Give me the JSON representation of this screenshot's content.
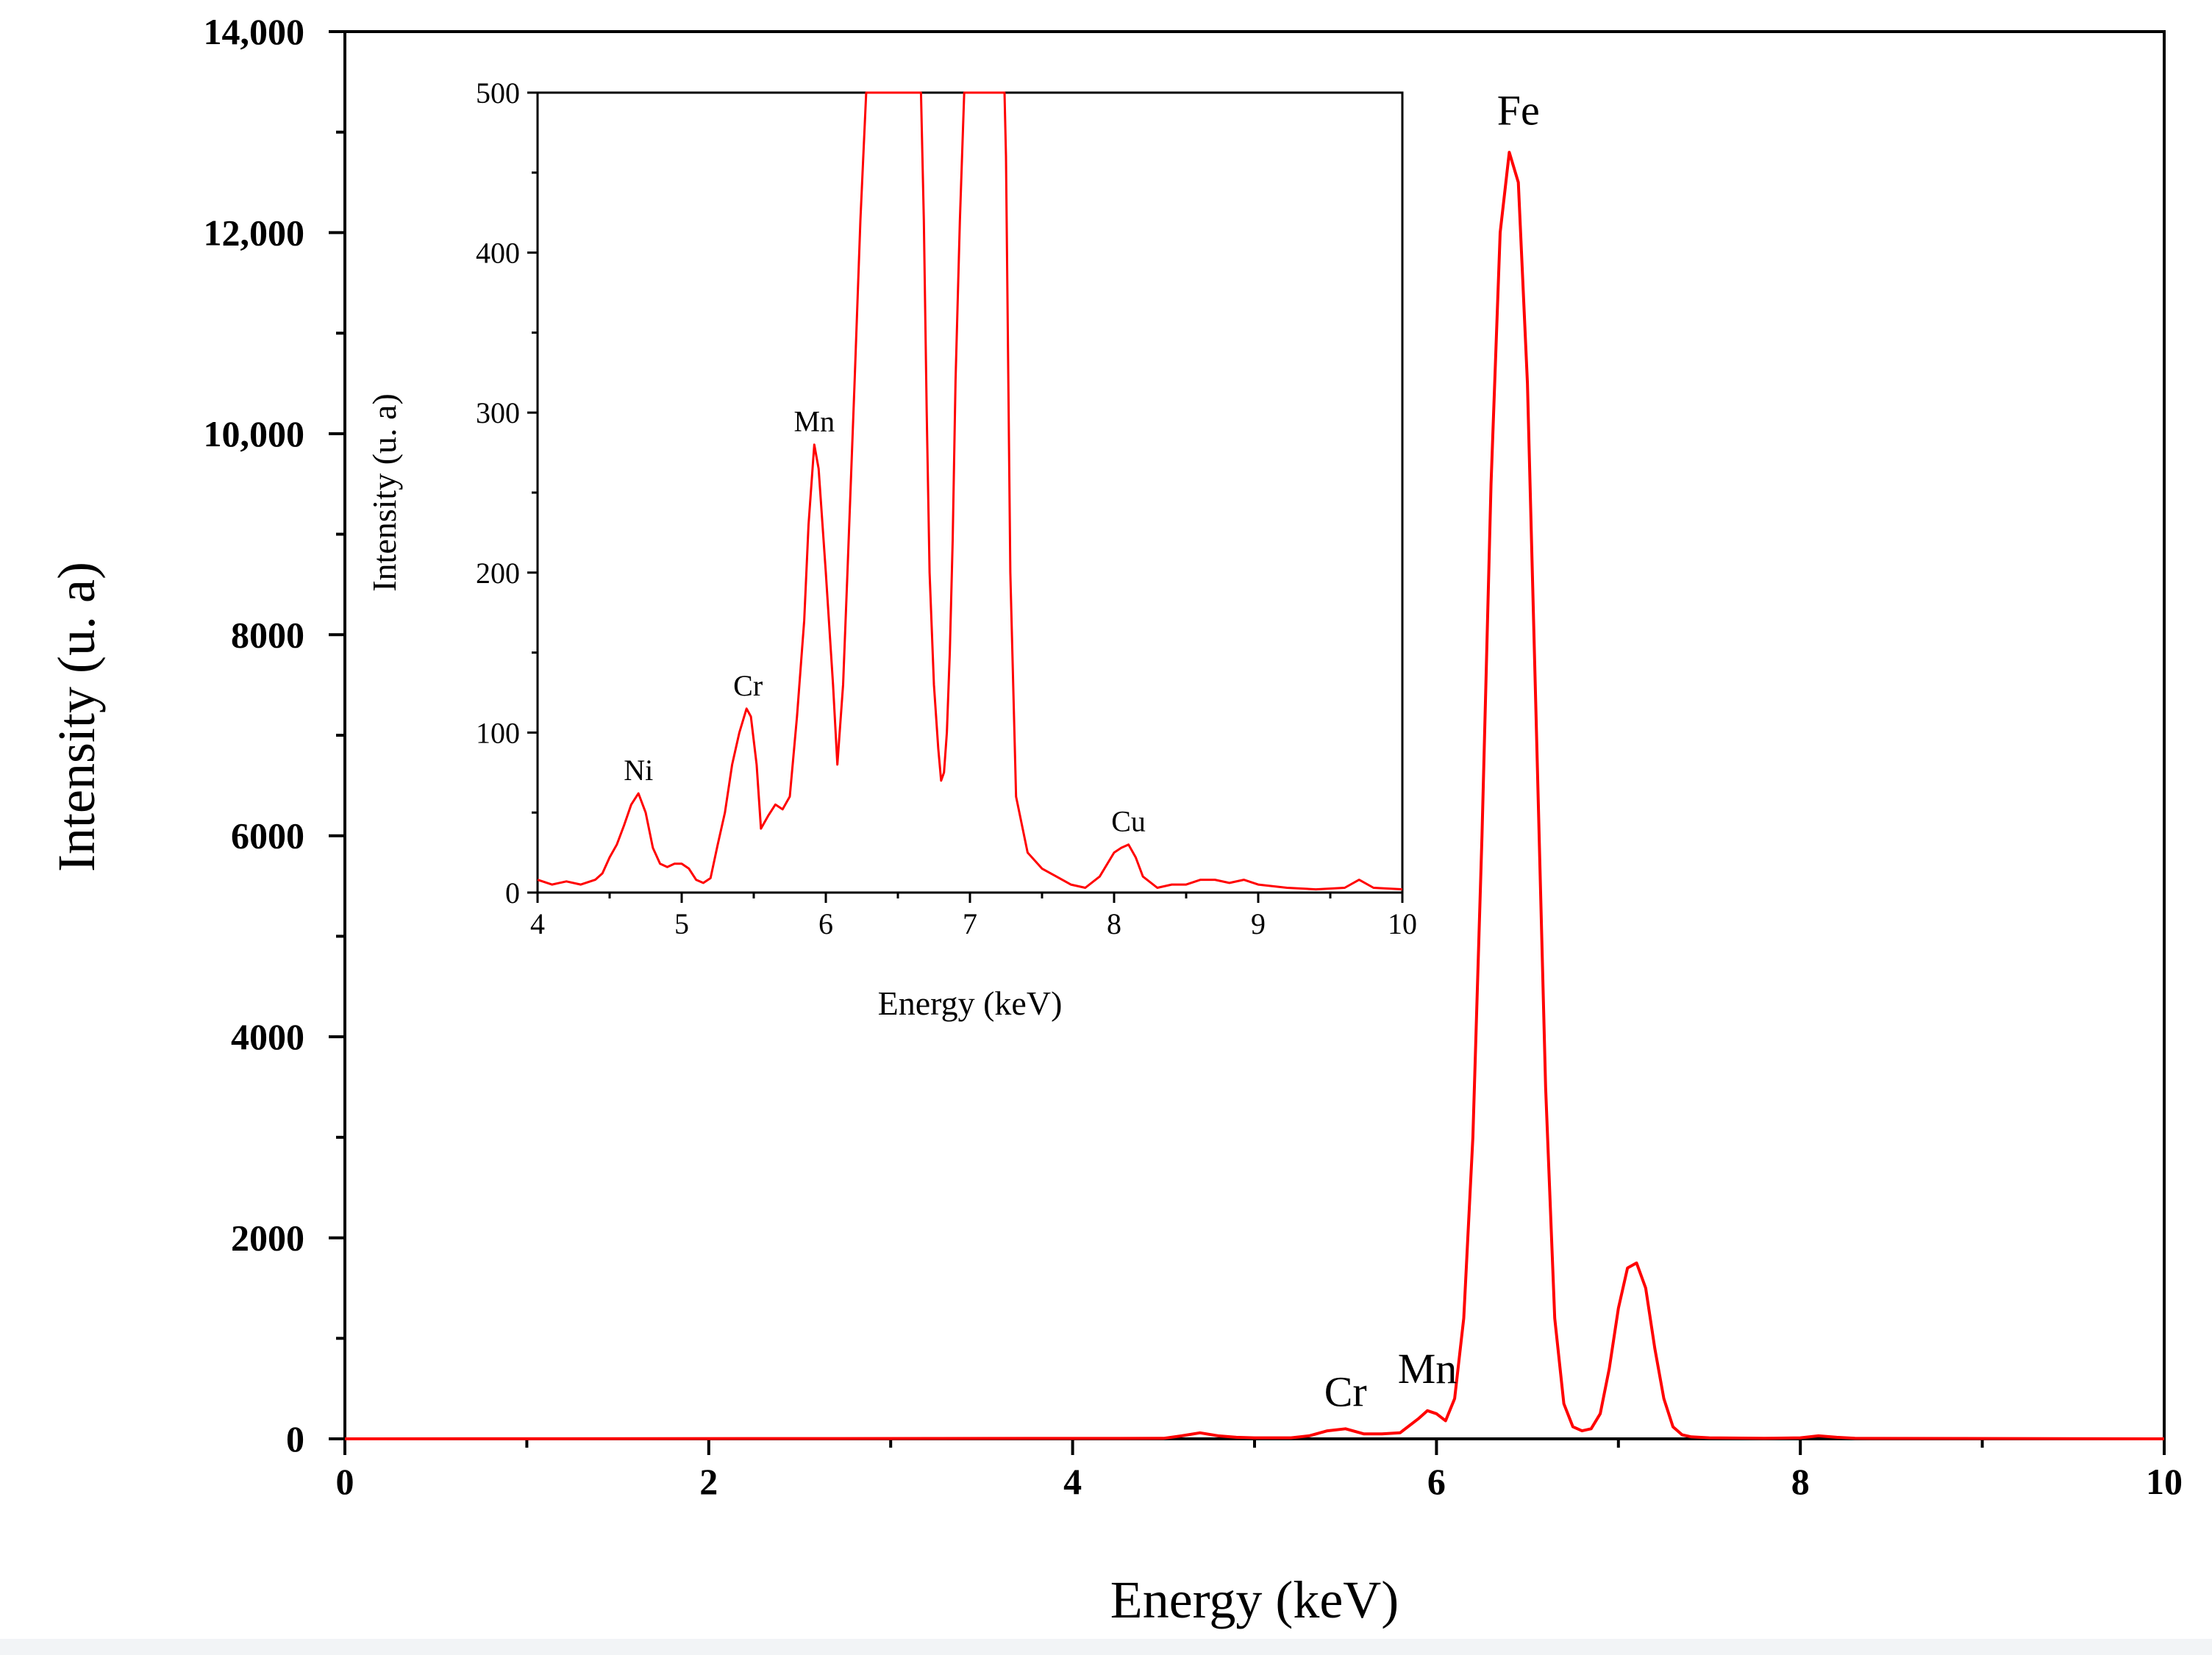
{
  "chart_data": [
    {
      "type": "line",
      "xlabel": "Energy (keV)",
      "ylabel": "Intensity (u. a)",
      "xlim": [
        0,
        10
      ],
      "ylim": [
        0,
        14000
      ],
      "x_ticks": [
        "0",
        "2",
        "4",
        "6",
        "8",
        "10"
      ],
      "y_ticks": [
        "0",
        "2000",
        "4000",
        "6000",
        "8000",
        "10,000",
        "12,000",
        "14,000"
      ],
      "grid": false,
      "line_color": "#ff0000",
      "series": [
        {
          "x": [
            0,
            4.5,
            4.6,
            4.7,
            4.8,
            4.9,
            5.0,
            5.2,
            5.3,
            5.4,
            5.5,
            5.6,
            5.7,
            5.8,
            5.9,
            5.95,
            6.0,
            6.05,
            6.1,
            6.15,
            6.2,
            6.25,
            6.3,
            6.35,
            6.4,
            6.45,
            6.5,
            6.55,
            6.6,
            6.65,
            6.7,
            6.75,
            6.8,
            6.85,
            6.9,
            6.95,
            7.0,
            7.05,
            7.1,
            7.15,
            7.2,
            7.25,
            7.3,
            7.35,
            7.4,
            7.5,
            7.8,
            8.0,
            8.1,
            8.2,
            8.3,
            10
          ],
          "y": [
            0,
            5,
            30,
            60,
            30,
            15,
            10,
            10,
            30,
            80,
            100,
            50,
            50,
            60,
            200,
            280,
            250,
            180,
            400,
            1200,
            3000,
            6000,
            9500,
            12000,
            12800,
            12500,
            10500,
            7000,
            3500,
            1200,
            350,
            120,
            80,
            100,
            250,
            700,
            1300,
            1700,
            1750,
            1500,
            900,
            400,
            120,
            40,
            20,
            10,
            5,
            10,
            30,
            15,
            5,
            0
          ]
        }
      ],
      "annotations": [
        {
          "text": "Fe",
          "x": 6.45,
          "y": 12900
        },
        {
          "text": "Mn",
          "x": 5.95,
          "y": 380
        },
        {
          "text": "Cr",
          "x": 5.5,
          "y": 150
        }
      ]
    },
    {
      "type": "line",
      "xlabel": "Energy (keV)",
      "ylabel": "Intensity (u. a)",
      "xlim": [
        4,
        10
      ],
      "ylim": [
        0,
        500
      ],
      "x_ticks": [
        "4",
        "5",
        "6",
        "7",
        "8",
        "9",
        "10"
      ],
      "y_ticks": [
        "0",
        "100",
        "200",
        "300",
        "400",
        "500"
      ],
      "grid": false,
      "line_color": "#ff0000",
      "series": [
        {
          "x": [
            4.0,
            4.1,
            4.2,
            4.3,
            4.4,
            4.45,
            4.5,
            4.55,
            4.6,
            4.65,
            4.7,
            4.75,
            4.8,
            4.85,
            4.9,
            4.95,
            5.0,
            5.05,
            5.1,
            5.15,
            5.2,
            5.25,
            5.3,
            5.35,
            5.4,
            5.45,
            5.48,
            5.52,
            5.55,
            5.6,
            5.65,
            5.7,
            5.75,
            5.8,
            5.85,
            5.88,
            5.92,
            5.95,
            6.0,
            6.05,
            6.08,
            6.12,
            6.15,
            6.2,
            6.24,
            6.28,
            6.3,
            6.66,
            6.68,
            6.7,
            6.72,
            6.75,
            6.78,
            6.8,
            6.82,
            6.84,
            6.86,
            6.88,
            6.9,
            6.93,
            6.96,
            6.98,
            7.24,
            7.25,
            7.28,
            7.32,
            7.4,
            7.5,
            7.6,
            7.7,
            7.8,
            7.9,
            8.0,
            8.05,
            8.1,
            8.15,
            8.2,
            8.3,
            8.4,
            8.5,
            8.6,
            8.7,
            8.8,
            8.9,
            9.0,
            9.2,
            9.4,
            9.6,
            9.7,
            9.8,
            10.0
          ],
          "y": [
            8,
            5,
            7,
            5,
            8,
            12,
            22,
            30,
            42,
            55,
            62,
            50,
            28,
            18,
            16,
            18,
            18,
            15,
            8,
            6,
            9,
            30,
            50,
            80,
            100,
            115,
            110,
            80,
            40,
            48,
            55,
            52,
            60,
            110,
            170,
            230,
            280,
            265,
            200,
            130,
            80,
            130,
            200,
            320,
            420,
            500,
            500,
            500,
            420,
            300,
            200,
            130,
            90,
            70,
            75,
            100,
            150,
            220,
            320,
            420,
            500,
            500,
            500,
            460,
            200,
            60,
            25,
            15,
            10,
            5,
            3,
            10,
            25,
            28,
            30,
            22,
            10,
            3,
            5,
            5,
            8,
            8,
            6,
            8,
            5,
            3,
            2,
            3,
            8,
            3,
            2
          ]
        }
      ],
      "annotations": [
        {
          "text": "Ni",
          "x": 4.7,
          "y": 62
        },
        {
          "text": "Cr",
          "x": 5.46,
          "y": 115
        },
        {
          "text": "Mn",
          "x": 5.92,
          "y": 280
        },
        {
          "text": "Cu",
          "x": 8.1,
          "y": 30
        }
      ]
    }
  ]
}
